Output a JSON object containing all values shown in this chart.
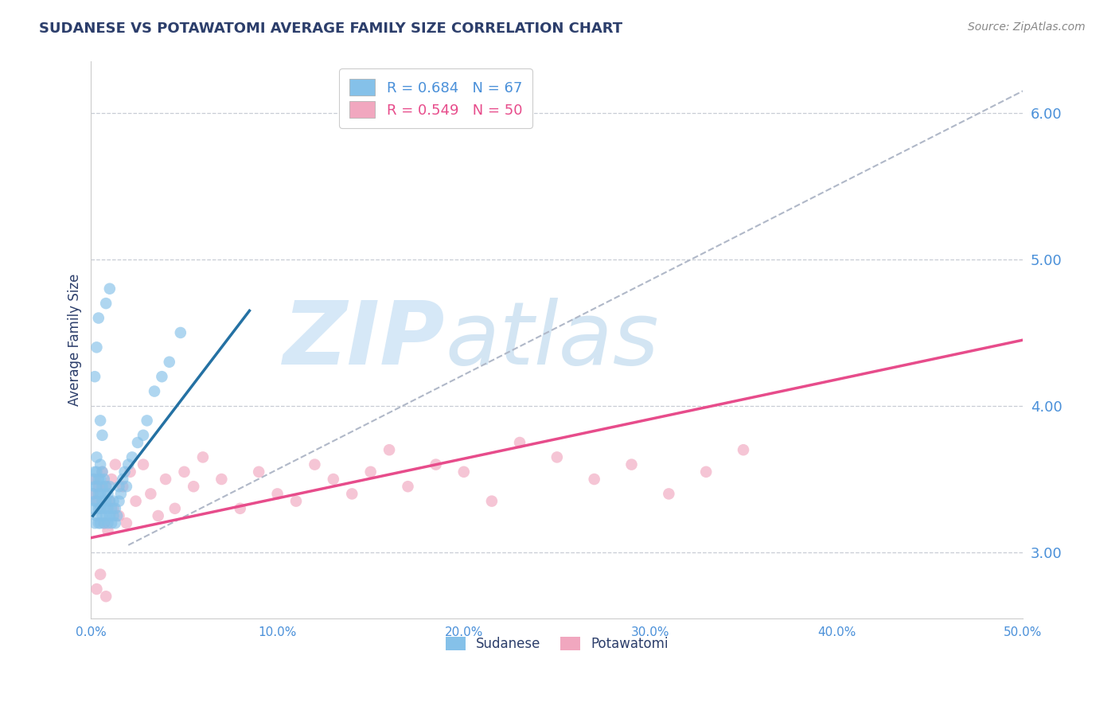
{
  "title": "SUDANESE VS POTAWATOMI AVERAGE FAMILY SIZE CORRELATION CHART",
  "source_text": "Source: ZipAtlas.com",
  "ylabel": "Average Family Size",
  "xmin": 0.0,
  "xmax": 0.5,
  "ymin": 2.55,
  "ymax": 6.35,
  "yticks": [
    3.0,
    4.0,
    5.0,
    6.0
  ],
  "xticks": [
    0.0,
    0.1,
    0.2,
    0.3,
    0.4,
    0.5
  ],
  "xtick_labels": [
    "0.0%",
    "10.0%",
    "20.0%",
    "30.0%",
    "40.0%",
    "50.0%"
  ],
  "blue_label": "Sudanese",
  "pink_label": "Potawatomi",
  "blue_R": "0.684",
  "blue_N": "67",
  "pink_R": "0.549",
  "pink_N": "50",
  "blue_color": "#85c1e9",
  "pink_color": "#f1a7bf",
  "blue_line_color": "#2471a3",
  "pink_line_color": "#e74c8b",
  "ref_line_color": "#b0b8c8",
  "title_color": "#2c3e6b",
  "axis_label_color": "#2c3e6b",
  "tick_color": "#4a90d9",
  "grid_color": "#c8cdd5",
  "watermark_text": "ZIPatlas",
  "watermark_color": "#d6e8f7",
  "blue_scatter_x": [
    0.001,
    0.001,
    0.001,
    0.002,
    0.002,
    0.002,
    0.002,
    0.003,
    0.003,
    0.003,
    0.003,
    0.003,
    0.004,
    0.004,
    0.004,
    0.004,
    0.005,
    0.005,
    0.005,
    0.005,
    0.005,
    0.006,
    0.006,
    0.006,
    0.006,
    0.007,
    0.007,
    0.007,
    0.007,
    0.008,
    0.008,
    0.008,
    0.009,
    0.009,
    0.009,
    0.01,
    0.01,
    0.01,
    0.011,
    0.011,
    0.012,
    0.012,
    0.013,
    0.013,
    0.014,
    0.015,
    0.015,
    0.016,
    0.017,
    0.018,
    0.019,
    0.02,
    0.022,
    0.025,
    0.028,
    0.03,
    0.034,
    0.038,
    0.042,
    0.048,
    0.002,
    0.003,
    0.004,
    0.005,
    0.006,
    0.008,
    0.01
  ],
  "blue_scatter_y": [
    3.3,
    3.4,
    3.5,
    3.2,
    3.35,
    3.45,
    3.55,
    3.25,
    3.35,
    3.45,
    3.55,
    3.65,
    3.2,
    3.3,
    3.4,
    3.5,
    3.2,
    3.3,
    3.4,
    3.5,
    3.6,
    3.25,
    3.35,
    3.45,
    3.55,
    3.2,
    3.3,
    3.4,
    3.5,
    3.25,
    3.35,
    3.45,
    3.2,
    3.3,
    3.4,
    3.25,
    3.35,
    3.45,
    3.2,
    3.3,
    3.25,
    3.35,
    3.2,
    3.3,
    3.25,
    3.35,
    3.45,
    3.4,
    3.5,
    3.55,
    3.45,
    3.6,
    3.65,
    3.75,
    3.8,
    3.9,
    4.1,
    4.2,
    4.3,
    4.5,
    4.2,
    4.4,
    4.6,
    3.9,
    3.8,
    4.7,
    4.8
  ],
  "pink_scatter_x": [
    0.001,
    0.002,
    0.003,
    0.004,
    0.005,
    0.006,
    0.007,
    0.008,
    0.009,
    0.01,
    0.011,
    0.012,
    0.013,
    0.015,
    0.017,
    0.019,
    0.021,
    0.024,
    0.028,
    0.032,
    0.036,
    0.04,
    0.045,
    0.05,
    0.055,
    0.06,
    0.07,
    0.08,
    0.09,
    0.1,
    0.11,
    0.12,
    0.13,
    0.14,
    0.15,
    0.16,
    0.17,
    0.185,
    0.2,
    0.215,
    0.23,
    0.25,
    0.27,
    0.29,
    0.31,
    0.33,
    0.35,
    0.003,
    0.005,
    0.008
  ],
  "pink_scatter_y": [
    3.4,
    3.5,
    3.35,
    3.45,
    3.3,
    3.55,
    3.2,
    3.45,
    3.15,
    3.35,
    3.5,
    3.3,
    3.6,
    3.25,
    3.45,
    3.2,
    3.55,
    3.35,
    3.6,
    3.4,
    3.25,
    3.5,
    3.3,
    3.55,
    3.45,
    3.65,
    3.5,
    3.3,
    3.55,
    3.4,
    3.35,
    3.6,
    3.5,
    3.4,
    3.55,
    3.7,
    3.45,
    3.6,
    3.55,
    3.35,
    3.75,
    3.65,
    3.5,
    3.6,
    3.4,
    3.55,
    3.7,
    2.75,
    2.85,
    2.7
  ],
  "blue_line_x": [
    0.001,
    0.085
  ],
  "blue_line_y": [
    3.25,
    4.65
  ],
  "pink_line_x": [
    0.0,
    0.5
  ],
  "pink_line_y": [
    3.1,
    4.45
  ],
  "ref_line_x": [
    0.02,
    0.5
  ],
  "ref_line_y": [
    3.05,
    6.15
  ]
}
